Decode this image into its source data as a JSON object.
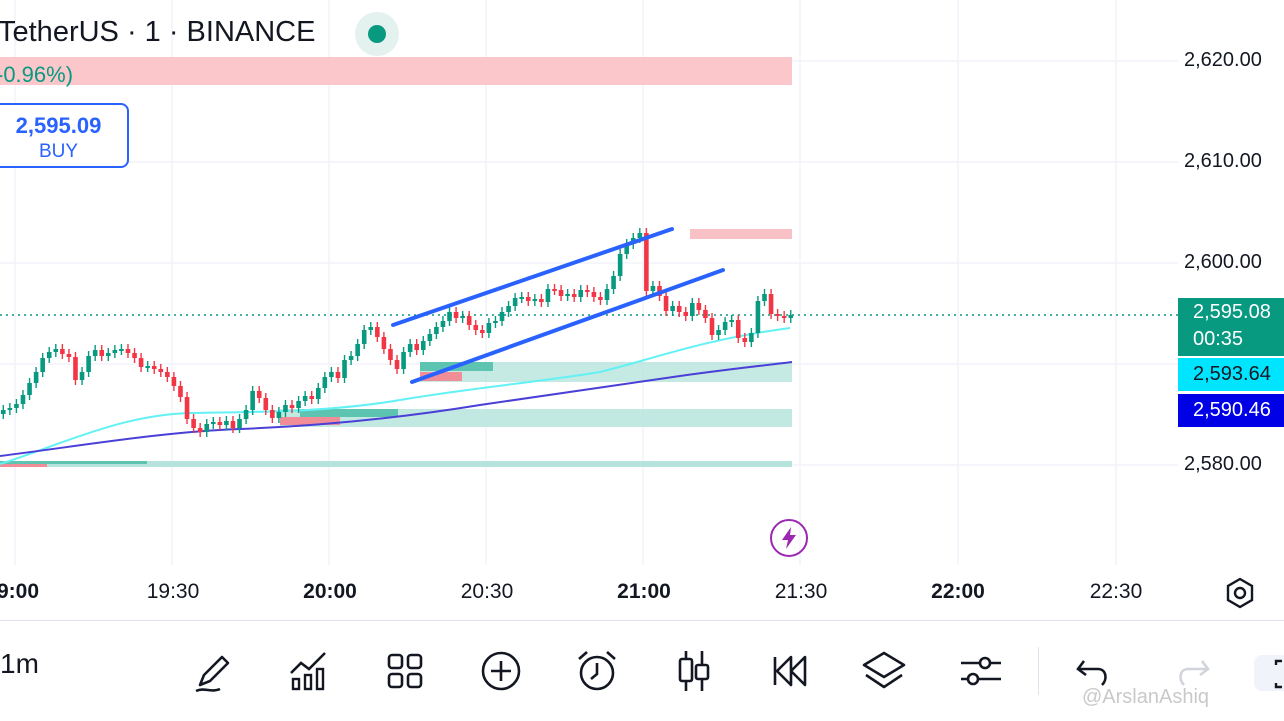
{
  "header": {
    "title": "TetherUS · 1 · BINANCE",
    "change": "-0.96%)"
  },
  "order": {
    "price": "2,595.09",
    "side": "BUY"
  },
  "price_axis": {
    "labels": [
      "2,620.00",
      "2,610.00",
      "2,600.00",
      "2,580.00"
    ],
    "last_price": "2,595.08",
    "countdown": "00:35",
    "ma_fast": "2,593.64",
    "ma_slow": "2,590.46"
  },
  "time_axis": {
    "labels": [
      {
        "text": "9:00",
        "bold": true
      },
      {
        "text": "19:30",
        "bold": false
      },
      {
        "text": "20:00",
        "bold": true
      },
      {
        "text": "20:30",
        "bold": false
      },
      {
        "text": "21:00",
        "bold": true
      },
      {
        "text": "21:30",
        "bold": false
      },
      {
        "text": "22:00",
        "bold": true
      },
      {
        "text": "22:30",
        "bold": false
      }
    ]
  },
  "toolbar": {
    "timeframe": "1m",
    "icons": [
      "draw-pen-icon",
      "indicators-icon",
      "grid-layout-icon",
      "add-circle-icon",
      "alarm-icon",
      "candles-icon",
      "replay-icon",
      "layers-icon",
      "settings-sliders-icon",
      "undo-icon",
      "redo-icon"
    ]
  },
  "watermark": "@ArslanAshiq",
  "colors": {
    "up": "#089981",
    "down": "#f23645",
    "channel": "#2962ff",
    "ma_fast": "#62f1f4",
    "ma_slow": "#4a3fd6",
    "last_tag": "#089981",
    "ma_fast_tag": "#00e5ff",
    "ma_slow_tag": "#0000e6"
  }
}
